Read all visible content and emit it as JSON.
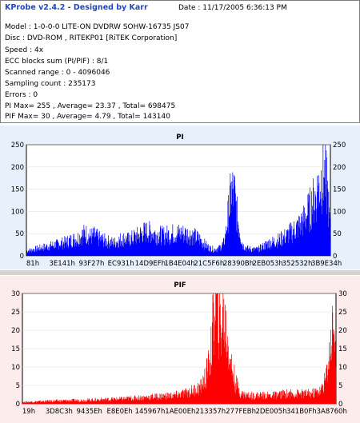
{
  "info": {
    "title": "KProbe v2.4.2 - Designed by Karr",
    "date": "Date : 11/17/2005 6:36:13 PM",
    "lines": [
      "Model : 1-0-0-0 LITE-ON DVDRW SOHW-16735 JS07",
      "Disc : DVD-ROM , RITEKP01 [RiTEK Corporation]",
      "Speed : 4x",
      "ECC blocks sum (PI/PIF) : 8/1",
      "Scanned range : 0 - 4096046",
      "Sampling count : 235173",
      "Errors : 0",
      "PI Max= 255 , Average= 23.37 , Total= 698475",
      "PIF Max= 30 , Average= 4.79 , Total= 143140"
    ]
  },
  "chart_data": [
    {
      "type": "bar",
      "title": "PI",
      "color": "#0000ff",
      "ylim": [
        0,
        250
      ],
      "yticks": [
        0,
        50,
        100,
        150,
        200,
        250
      ],
      "xticks": [
        "81h",
        "3E141h",
        "93F27h",
        "EC931h",
        "14D9EFh",
        "1B4E04h",
        "21C5F6h",
        "28390Bh",
        "2EB053h",
        "352532h",
        "3B9E34h"
      ],
      "profile": [
        [
          0,
          12
        ],
        [
          3,
          16
        ],
        [
          6,
          20
        ],
        [
          9,
          24
        ],
        [
          12,
          28
        ],
        [
          15,
          32
        ],
        [
          18,
          38
        ],
        [
          21,
          44
        ],
        [
          24,
          56
        ],
        [
          26,
          48
        ],
        [
          28,
          50
        ],
        [
          30,
          42
        ],
        [
          33,
          36
        ],
        [
          36,
          32
        ],
        [
          39,
          42
        ],
        [
          42,
          40
        ],
        [
          45,
          48
        ],
        [
          48,
          58
        ],
        [
          50,
          60
        ],
        [
          53,
          54
        ],
        [
          56,
          50
        ],
        [
          59,
          54
        ],
        [
          62,
          56
        ],
        [
          65,
          55
        ],
        [
          68,
          50
        ],
        [
          71,
          42
        ],
        [
          73,
          30
        ],
        [
          75,
          20
        ],
        [
          77,
          16
        ],
        [
          79,
          18
        ],
        [
          81,
          30
        ],
        [
          82,
          60
        ],
        [
          83,
          110
        ],
        [
          84,
          150
        ],
        [
          84.8,
          160
        ],
        [
          85.5,
          150
        ],
        [
          86.5,
          100
        ],
        [
          88,
          50
        ],
        [
          89,
          25
        ],
        [
          91,
          18
        ],
        [
          93,
          16
        ],
        [
          95,
          16
        ],
        [
          97,
          22
        ],
        [
          99,
          30
        ],
        [
          101,
          34
        ],
        [
          104,
          40
        ],
        [
          107,
          50
        ],
        [
          110,
          64
        ],
        [
          113,
          80
        ],
        [
          116,
          110
        ],
        [
          119,
          150
        ],
        [
          121,
          190
        ],
        [
          122,
          210
        ],
        [
          123.5,
          170
        ],
        [
          124.5,
          90
        ],
        [
          125,
          20
        ]
      ]
    },
    {
      "type": "bar",
      "title": "PIF",
      "color": "#ff0000",
      "ylim": [
        0,
        30
      ],
      "yticks": [
        0,
        5,
        10,
        15,
        20,
        25,
        30
      ],
      "xticks": [
        "19h",
        "3D8C3h",
        "9435Eh",
        "E8E0Eh",
        "145967h",
        "1AE00Eh",
        "213357h",
        "277FEBh",
        "2DE005h",
        "341B0Fh",
        "3A8760h"
      ],
      "profile": [
        [
          0,
          0.5
        ],
        [
          10,
          0.8
        ],
        [
          20,
          1
        ],
        [
          30,
          1.2
        ],
        [
          40,
          1.5
        ],
        [
          50,
          2
        ],
        [
          60,
          2.5
        ],
        [
          64,
          3
        ],
        [
          68,
          4
        ],
        [
          71,
          5
        ],
        [
          73,
          8
        ],
        [
          75,
          15
        ],
        [
          76,
          25
        ],
        [
          77,
          30
        ],
        [
          78,
          27
        ],
        [
          79,
          22
        ],
        [
          80,
          28
        ],
        [
          81,
          22
        ],
        [
          82,
          18
        ],
        [
          83,
          12
        ],
        [
          85,
          6
        ],
        [
          87,
          3
        ],
        [
          90,
          2.5
        ],
        [
          95,
          2.5
        ],
        [
          100,
          2.5
        ],
        [
          105,
          3
        ],
        [
          110,
          3
        ],
        [
          115,
          3
        ],
        [
          119,
          4
        ],
        [
          121,
          8
        ],
        [
          122,
          14
        ],
        [
          123,
          20
        ],
        [
          124,
          26
        ],
        [
          124.6,
          18
        ],
        [
          125,
          1
        ]
      ]
    }
  ]
}
